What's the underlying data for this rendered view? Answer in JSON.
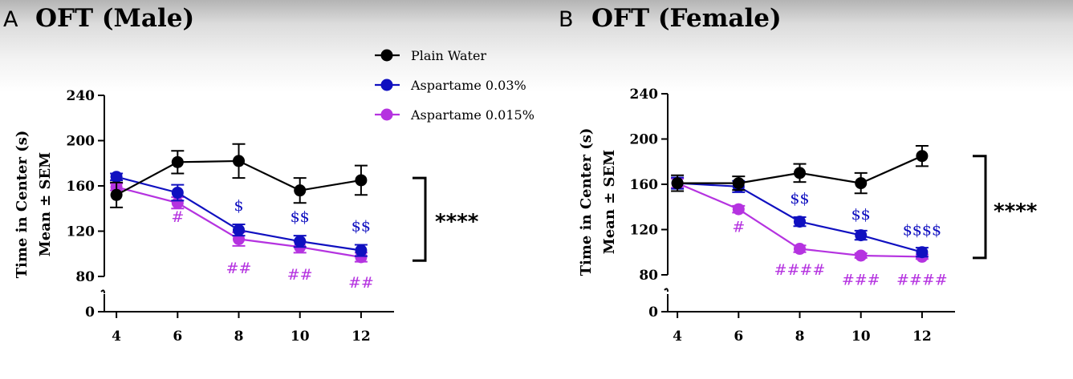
{
  "legend": [
    {
      "label": "Plain Water",
      "color": "#000000"
    },
    {
      "label": "Aspartame 0.03%",
      "color": "#1010c0"
    },
    {
      "label": "Aspartame 0.015%",
      "color": "#b533e0"
    }
  ],
  "chart_data": [
    {
      "type": "line",
      "panel": "A",
      "title": "OFT (Male)",
      "xlabel": "",
      "ylabel": [
        "Time in Center (s)",
        "Mean ± SEM"
      ],
      "x": [
        4,
        6,
        8,
        10,
        12
      ],
      "x_ticks": [
        "4",
        "6",
        "8",
        "10",
        "12"
      ],
      "xlim": [
        3,
        13
      ],
      "ylim": [
        0,
        240
      ],
      "y_axis_break": [
        0,
        80
      ],
      "y_ticks": [
        "0",
        "80",
        "120",
        "160",
        "200",
        "240"
      ],
      "grid": false,
      "legend_position": "top-center",
      "series": [
        {
          "name": "Plain Water",
          "color": "#000000",
          "values": [
            152,
            181,
            182,
            156,
            165
          ],
          "error": [
            11,
            10,
            15,
            11,
            13
          ]
        },
        {
          "name": "Aspartame 0.03%",
          "color": "#1010c0",
          "values": [
            168,
            154,
            121,
            111,
            103
          ],
          "error": [
            3,
            7,
            5,
            5,
            5
          ]
        },
        {
          "name": "Aspartame 0.015%",
          "color": "#b533e0",
          "values": [
            159,
            145,
            113,
            106,
            97
          ],
          "error": [
            3,
            5,
            6,
            5,
            4
          ]
        }
      ],
      "annotations": [
        {
          "text": "$",
          "x": 8,
          "y": 138,
          "color": "#1010c0"
        },
        {
          "text": "$$",
          "x": 10,
          "y": 128,
          "color": "#1010c0"
        },
        {
          "text": "$$",
          "x": 12,
          "y": 120,
          "color": "#1010c0"
        },
        {
          "text": "#",
          "x": 6,
          "y": 128,
          "color": "#b533e0"
        },
        {
          "text": "##",
          "x": 8,
          "y": 83,
          "color": "#b533e0"
        },
        {
          "text": "##",
          "x": 10,
          "y": 77,
          "color": "#b533e0"
        },
        {
          "text": "##",
          "x": 12,
          "y": 70,
          "color": "#b533e0"
        }
      ],
      "significance": {
        "text": "****",
        "y_range": [
          94,
          167
        ]
      }
    },
    {
      "type": "line",
      "panel": "B",
      "title": "OFT (Female)",
      "xlabel": "",
      "ylabel": [
        "Time in Center (s)",
        "Mean ± SEM"
      ],
      "x": [
        4,
        6,
        8,
        10,
        12
      ],
      "x_ticks": [
        "4",
        "6",
        "8",
        "10",
        "12"
      ],
      "xlim": [
        3,
        13
      ],
      "ylim": [
        0,
        240
      ],
      "y_axis_break": [
        0,
        80
      ],
      "y_ticks": [
        "0",
        "80",
        "120",
        "160",
        "200",
        "240"
      ],
      "grid": false,
      "legend_position": "top-center",
      "series": [
        {
          "name": "Plain Water",
          "color": "#000000",
          "values": [
            161,
            161,
            170,
            161,
            185
          ],
          "error": [
            7,
            6,
            8,
            9,
            9
          ]
        },
        {
          "name": "Aspartame 0.03%",
          "color": "#1010c0",
          "values": [
            161,
            158,
            127,
            115,
            100
          ],
          "error": [
            5,
            5,
            4,
            4,
            4
          ]
        },
        {
          "name": "Aspartame 0.015%",
          "color": "#b533e0",
          "values": [
            161,
            138,
            103,
            97,
            96
          ],
          "error": [
            4,
            3,
            3,
            2,
            2
          ]
        }
      ],
      "annotations": [
        {
          "text": "$$",
          "x": 8,
          "y": 143,
          "color": "#1010c0"
        },
        {
          "text": "$$",
          "x": 10,
          "y": 129,
          "color": "#1010c0"
        },
        {
          "text": "$$$$",
          "x": 12,
          "y": 115,
          "color": "#1010c0"
        },
        {
          "text": "#",
          "x": 6,
          "y": 118,
          "color": "#b533e0"
        },
        {
          "text": "####",
          "x": 8,
          "y": 80,
          "color": "#b533e0"
        },
        {
          "text": "###",
          "x": 10,
          "y": 71,
          "color": "#b533e0"
        },
        {
          "text": "####",
          "x": 12,
          "y": 71,
          "color": "#b533e0"
        }
      ],
      "significance": {
        "text": "****",
        "y_range": [
          95,
          185
        ]
      }
    }
  ]
}
